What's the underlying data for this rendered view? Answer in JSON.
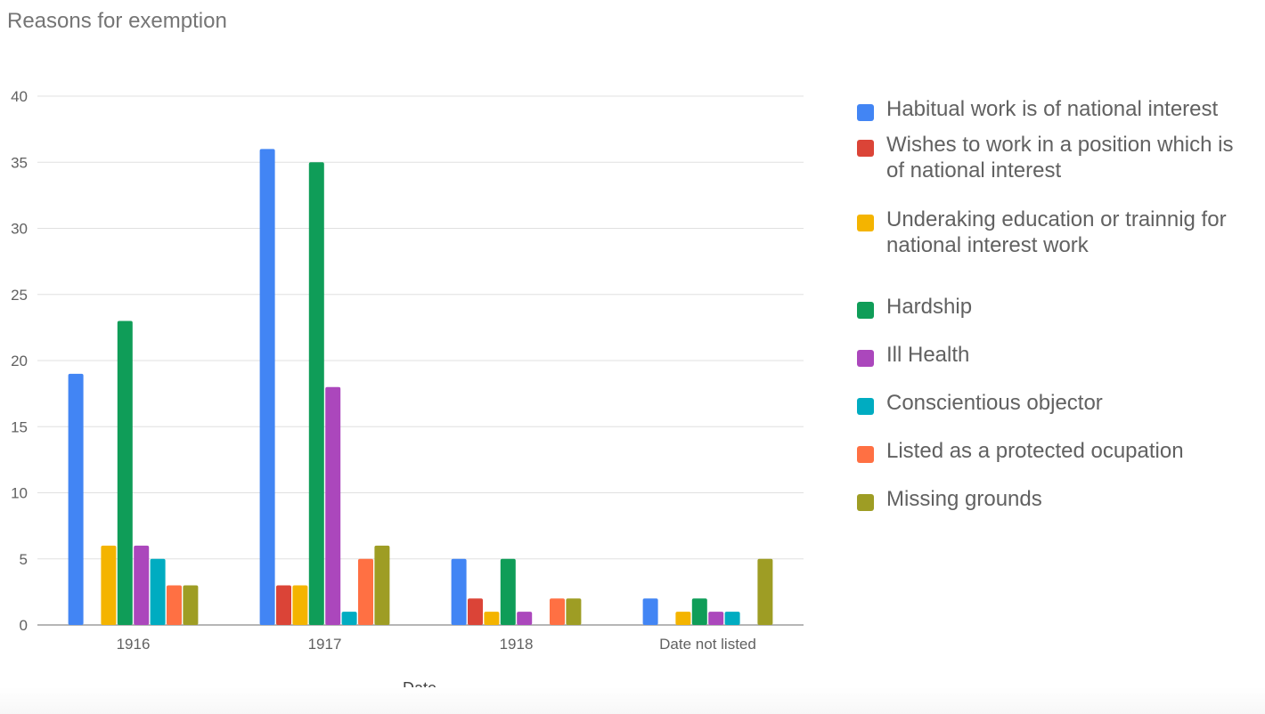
{
  "chart_data": {
    "type": "bar",
    "title": "Reasons for exemption",
    "xlabel": "Date",
    "ylabel": "",
    "ylim": [
      0,
      40
    ],
    "yticks": [
      0,
      5,
      10,
      15,
      20,
      25,
      30,
      35,
      40
    ],
    "grid": true,
    "legend_position": "right",
    "categories": [
      "1916",
      "1917",
      "1918",
      "Date not listed"
    ],
    "series": [
      {
        "name": "Habitual work is of national interest",
        "color": "#4285f4",
        "values": [
          19,
          36,
          5,
          2
        ]
      },
      {
        "name": "Wishes to work in a position which is of national interest",
        "color": "#db4437",
        "values": [
          0,
          3,
          2,
          0
        ]
      },
      {
        "name": "Underaking education or trainnig for national interest work",
        "color": "#f4b400",
        "values": [
          6,
          3,
          1,
          1
        ]
      },
      {
        "name": "Hardship",
        "color": "#0f9d58",
        "values": [
          23,
          35,
          5,
          2
        ]
      },
      {
        "name": "Ill Health",
        "color": "#ab47bc",
        "values": [
          6,
          18,
          1,
          1
        ]
      },
      {
        "name": "Conscientious objector",
        "color": "#00acc1",
        "values": [
          5,
          1,
          0,
          1
        ]
      },
      {
        "name": "Listed as a protected ocupation",
        "color": "#ff7043",
        "values": [
          3,
          5,
          2,
          0
        ]
      },
      {
        "name": "Missing grounds",
        "color": "#9e9d24",
        "values": [
          3,
          6,
          2,
          5
        ]
      }
    ]
  }
}
